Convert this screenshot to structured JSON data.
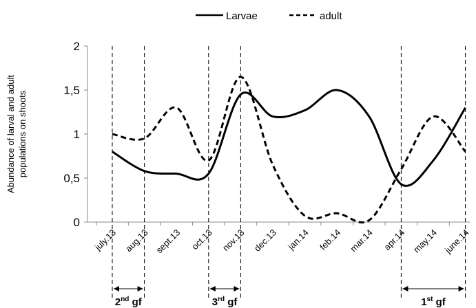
{
  "chart_data": {
    "type": "line",
    "title": "",
    "xlabel": "",
    "ylabel_lines": [
      "Abundance of  larval and adult",
      "populations on shoots"
    ],
    "categories": [
      "july.13",
      "aug.13",
      "sept.13",
      "oct.13",
      "nov.13",
      "dec.13",
      "jan.14",
      "feb.14",
      "mar.14",
      "apr.14",
      "may.14",
      "june.14"
    ],
    "ylim": [
      0,
      2
    ],
    "y_ticks": [
      {
        "value": 0,
        "label": "0"
      },
      {
        "value": 0.5,
        "label": "0,5"
      },
      {
        "value": 1,
        "label": "1"
      },
      {
        "value": 1.5,
        "label": "1,5"
      },
      {
        "value": 2,
        "label": "2"
      }
    ],
    "grid": false,
    "legend_position": "top",
    "series": [
      {
        "name": "Larvae",
        "style": "solid",
        "values": [
          0.8,
          0.58,
          0.55,
          0.55,
          1.45,
          1.2,
          1.27,
          1.5,
          1.2,
          0.43,
          0.7,
          1.3
        ]
      },
      {
        "name": "adult",
        "style": "dashed",
        "values": [
          1.0,
          0.95,
          1.3,
          0.7,
          1.65,
          0.65,
          0.07,
          0.1,
          0.02,
          0.6,
          1.2,
          0.8
        ]
      }
    ],
    "vlines_x": [
      0,
      1,
      3,
      4,
      9,
      11
    ],
    "generation_brackets": [
      {
        "from": 0,
        "to": 1,
        "label": "2",
        "sup": "nd",
        "suffix": " gf"
      },
      {
        "from": 3,
        "to": 4,
        "label": "3",
        "sup": "rd",
        "suffix": " gf"
      },
      {
        "from": 9,
        "to": 11,
        "label": "1",
        "sup": "st",
        "suffix": " gf"
      }
    ]
  }
}
